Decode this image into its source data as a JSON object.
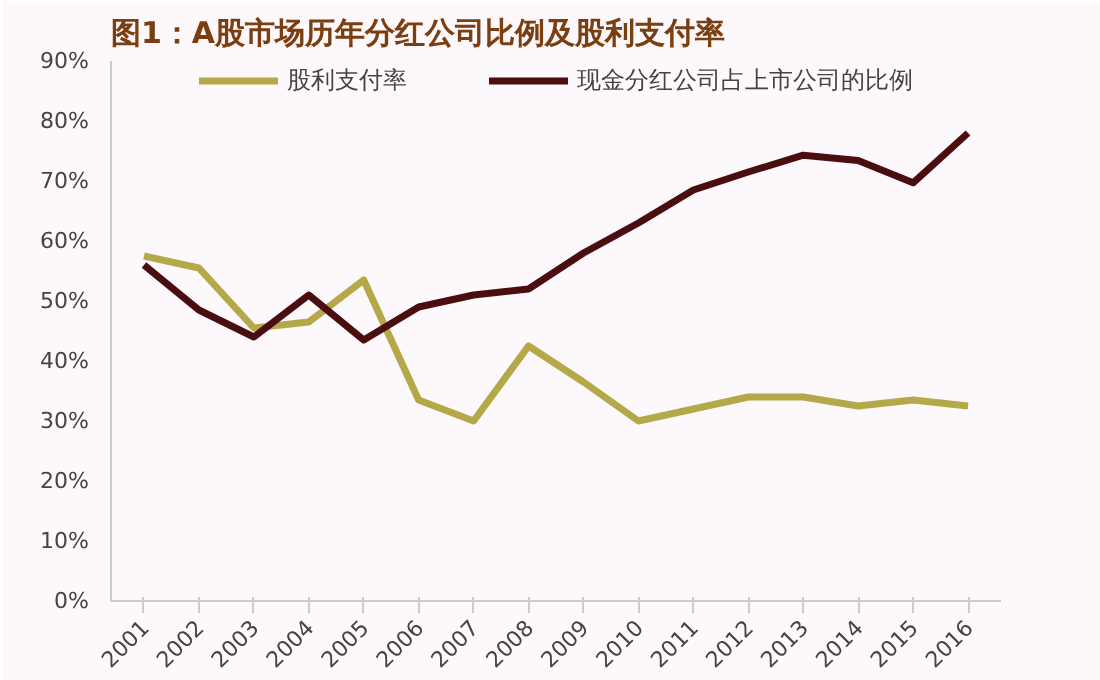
{
  "chart_data": {
    "type": "line",
    "title": "图1：A股市场历年分红公司比例及股利支付率",
    "categories": [
      "2001",
      "2002",
      "2003",
      "2004",
      "2005",
      "2006",
      "2007",
      "2008",
      "2009",
      "2010",
      "2011",
      "2012",
      "2013",
      "2014",
      "2015",
      "2016"
    ],
    "series": [
      {
        "name": "股利支付率",
        "color": "#b5a848",
        "values": [
          57.5,
          55.5,
          45.5,
          46.5,
          53.5,
          33.5,
          30,
          42.5,
          36.5,
          30,
          32,
          34,
          34,
          32.5,
          33.5,
          32.5
        ]
      },
      {
        "name": "现金分红公司占上市公司的比例",
        "color": "#4a0d10",
        "values": [
          56,
          48.5,
          44,
          51,
          43.5,
          49,
          51,
          52,
          58,
          63,
          68.5,
          71.5,
          74.3,
          73.4,
          69.7,
          78
        ]
      }
    ],
    "ylim": [
      0,
      90
    ],
    "yticks": [
      {
        "value": 0,
        "label": "0%"
      },
      {
        "value": 10,
        "label": "10%"
      },
      {
        "value": 20,
        "label": "20%"
      },
      {
        "value": 30,
        "label": "30%"
      },
      {
        "value": 40,
        "label": "40%"
      },
      {
        "value": 50,
        "label": "50%"
      },
      {
        "value": 60,
        "label": "60%"
      },
      {
        "value": 70,
        "label": "70%"
      },
      {
        "value": 80,
        "label": "80%"
      },
      {
        "value": 90,
        "label": "90%"
      }
    ],
    "grid": false,
    "legend": "top",
    "marker": "none",
    "line_style": "solid"
  }
}
